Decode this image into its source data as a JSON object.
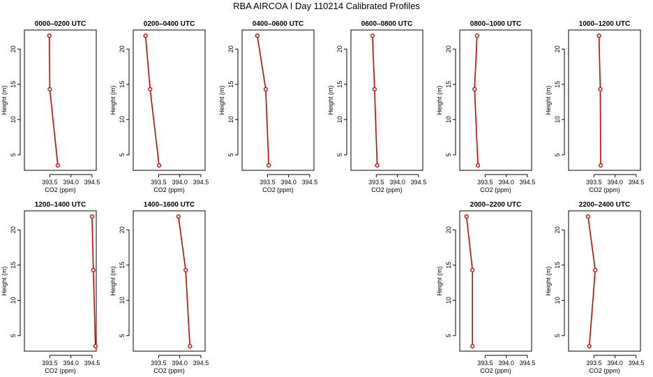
{
  "figure": {
    "title": "RBA AIRCOA I  Day 110214  Calibrated Profiles"
  },
  "style": {
    "series_color": "#d40000",
    "axis_color": "#000000"
  },
  "chart_data": [
    {
      "type": "line",
      "title": "0000–0200 UTC",
      "xlabel": "CO2 (ppm)",
      "ylabel": "Height (m)",
      "xlim": [
        392.9,
        394.6
      ],
      "ylim": [
        2.8,
        22.7
      ],
      "xticks": [
        393.5,
        394.0,
        394.5
      ],
      "xtick_labels": [
        "393.5",
        "394.0",
        "394.5"
      ],
      "yticks": [
        5,
        10,
        15,
        20
      ],
      "ytick_labels": [
        "5",
        "10",
        "15",
        "20"
      ],
      "points": [
        {
          "x": 393.49,
          "y": 21.9
        },
        {
          "x": 393.5,
          "y": 14.3
        },
        {
          "x": 393.69,
          "y": 3.5
        }
      ]
    },
    {
      "type": "line",
      "title": "0200–0400 UTC",
      "xlabel": "CO2 (ppm)",
      "ylabel": "Height (m)",
      "xlim": [
        392.9,
        394.6
      ],
      "ylim": [
        2.8,
        22.7
      ],
      "xticks": [
        393.5,
        394.0,
        394.5
      ],
      "xtick_labels": [
        "393.5",
        "394.0",
        "394.5"
      ],
      "yticks": [
        5,
        10,
        15,
        20
      ],
      "ytick_labels": [
        "5",
        "10",
        "15",
        "20"
      ],
      "points": [
        {
          "x": 393.19,
          "y": 21.9
        },
        {
          "x": 393.3,
          "y": 14.3
        },
        {
          "x": 393.51,
          "y": 3.5
        }
      ]
    },
    {
      "type": "line",
      "title": "0400–0600 UTC",
      "xlabel": "CO2 (ppm)",
      "ylabel": "Height (m)",
      "xlim": [
        392.9,
        394.6
      ],
      "ylim": [
        2.8,
        22.7
      ],
      "xticks": [
        393.5,
        394.0,
        394.5
      ],
      "xtick_labels": [
        "393.5",
        "394.0",
        "394.5"
      ],
      "yticks": [
        5,
        10,
        15,
        20
      ],
      "ytick_labels": [
        "5",
        "10",
        "15",
        "20"
      ],
      "points": [
        {
          "x": 393.26,
          "y": 21.9
        },
        {
          "x": 393.46,
          "y": 14.3
        },
        {
          "x": 393.53,
          "y": 3.5
        }
      ]
    },
    {
      "type": "line",
      "title": "0600–0800 UTC",
      "xlabel": "CO2 (ppm)",
      "ylabel": "Height (m)",
      "xlim": [
        392.9,
        394.6
      ],
      "ylim": [
        2.8,
        22.7
      ],
      "xticks": [
        393.5,
        394.0,
        394.5
      ],
      "xtick_labels": [
        "393.5",
        "394.0",
        "394.5"
      ],
      "yticks": [
        5,
        10,
        15,
        20
      ],
      "ytick_labels": [
        "5",
        "10",
        "15",
        "20"
      ],
      "points": [
        {
          "x": 393.41,
          "y": 21.9
        },
        {
          "x": 393.46,
          "y": 14.3
        },
        {
          "x": 393.52,
          "y": 3.5
        }
      ]
    },
    {
      "type": "line",
      "title": "0800–1000 UTC",
      "xlabel": "CO2 (ppm)",
      "ylabel": "Height (m)",
      "xlim": [
        392.9,
        394.6
      ],
      "ylim": [
        2.8,
        22.7
      ],
      "xticks": [
        393.5,
        394.0,
        394.5
      ],
      "xtick_labels": [
        "393.5",
        "394.0",
        "394.5"
      ],
      "yticks": [
        5,
        10,
        15,
        20
      ],
      "ytick_labels": [
        "5",
        "10",
        "15",
        "20"
      ],
      "points": [
        {
          "x": 393.31,
          "y": 21.9
        },
        {
          "x": 393.25,
          "y": 14.3
        },
        {
          "x": 393.33,
          "y": 3.5
        }
      ]
    },
    {
      "type": "line",
      "title": "1000–1200 UTC",
      "xlabel": "CO2 (ppm)",
      "ylabel": "Height (m)",
      "xlim": [
        392.9,
        394.6
      ],
      "ylim": [
        2.8,
        22.7
      ],
      "xticks": [
        393.5,
        394.0,
        394.5
      ],
      "xtick_labels": [
        "393.5",
        "394.0",
        "394.5"
      ],
      "yticks": [
        5,
        10,
        15,
        20
      ],
      "ytick_labels": [
        "5",
        "10",
        "15",
        "20"
      ],
      "points": [
        {
          "x": 393.62,
          "y": 21.9
        },
        {
          "x": 393.65,
          "y": 14.3
        },
        {
          "x": 393.66,
          "y": 3.5
        }
      ]
    },
    {
      "type": "line",
      "title": "1200–1400 UTC",
      "xlabel": "CO2 (ppm)",
      "ylabel": "Height (m)",
      "xlim": [
        392.9,
        394.6
      ],
      "ylim": [
        2.8,
        22.7
      ],
      "xticks": [
        393.5,
        394.0,
        394.5
      ],
      "xtick_labels": [
        "393.5",
        "394.0",
        "394.5"
      ],
      "yticks": [
        5,
        10,
        15,
        20
      ],
      "ytick_labels": [
        "5",
        "10",
        "15",
        "20"
      ],
      "points": [
        {
          "x": 394.5,
          "y": 21.9
        },
        {
          "x": 394.53,
          "y": 14.3
        },
        {
          "x": 394.58,
          "y": 3.5
        }
      ]
    },
    {
      "type": "line",
      "title": "1400–1600 UTC",
      "xlabel": "CO2 (ppm)",
      "ylabel": "Height (m)",
      "xlim": [
        392.9,
        394.6
      ],
      "ylim": [
        2.8,
        22.7
      ],
      "xticks": [
        393.5,
        394.0,
        394.5
      ],
      "xtick_labels": [
        "393.5",
        "394.0",
        "394.5"
      ],
      "yticks": [
        5,
        10,
        15,
        20
      ],
      "ytick_labels": [
        "5",
        "10",
        "15",
        "20"
      ],
      "points": [
        {
          "x": 393.97,
          "y": 21.9
        },
        {
          "x": 394.14,
          "y": 14.3
        },
        {
          "x": 394.24,
          "y": 3.5
        }
      ]
    },
    {
      "type": "line",
      "title": "2000–2200 UTC",
      "xlabel": "CO2 (ppm)",
      "ylabel": "Height (m)",
      "xlim": [
        392.9,
        394.6
      ],
      "ylim": [
        2.8,
        22.7
      ],
      "xticks": [
        393.5,
        394.0,
        394.5
      ],
      "xtick_labels": [
        "393.5",
        "394.0",
        "394.5"
      ],
      "yticks": [
        5,
        10,
        15,
        20
      ],
      "ytick_labels": [
        "5",
        "10",
        "15",
        "20"
      ],
      "points": [
        {
          "x": 393.06,
          "y": 21.9
        },
        {
          "x": 393.2,
          "y": 14.3
        },
        {
          "x": 393.2,
          "y": 3.5
        }
      ]
    },
    {
      "type": "line",
      "title": "2200–2400 UTC",
      "xlabel": "CO2 (ppm)",
      "ylabel": "Height (m)",
      "xlim": [
        392.9,
        394.6
      ],
      "ylim": [
        2.8,
        22.7
      ],
      "xticks": [
        393.5,
        394.0,
        394.5
      ],
      "xtick_labels": [
        "393.5",
        "394.0",
        "394.5"
      ],
      "yticks": [
        5,
        10,
        15,
        20
      ],
      "ytick_labels": [
        "5",
        "10",
        "15",
        "20"
      ],
      "points": [
        {
          "x": 393.36,
          "y": 21.9
        },
        {
          "x": 393.53,
          "y": 14.3
        },
        {
          "x": 393.39,
          "y": 3.5
        }
      ]
    }
  ]
}
